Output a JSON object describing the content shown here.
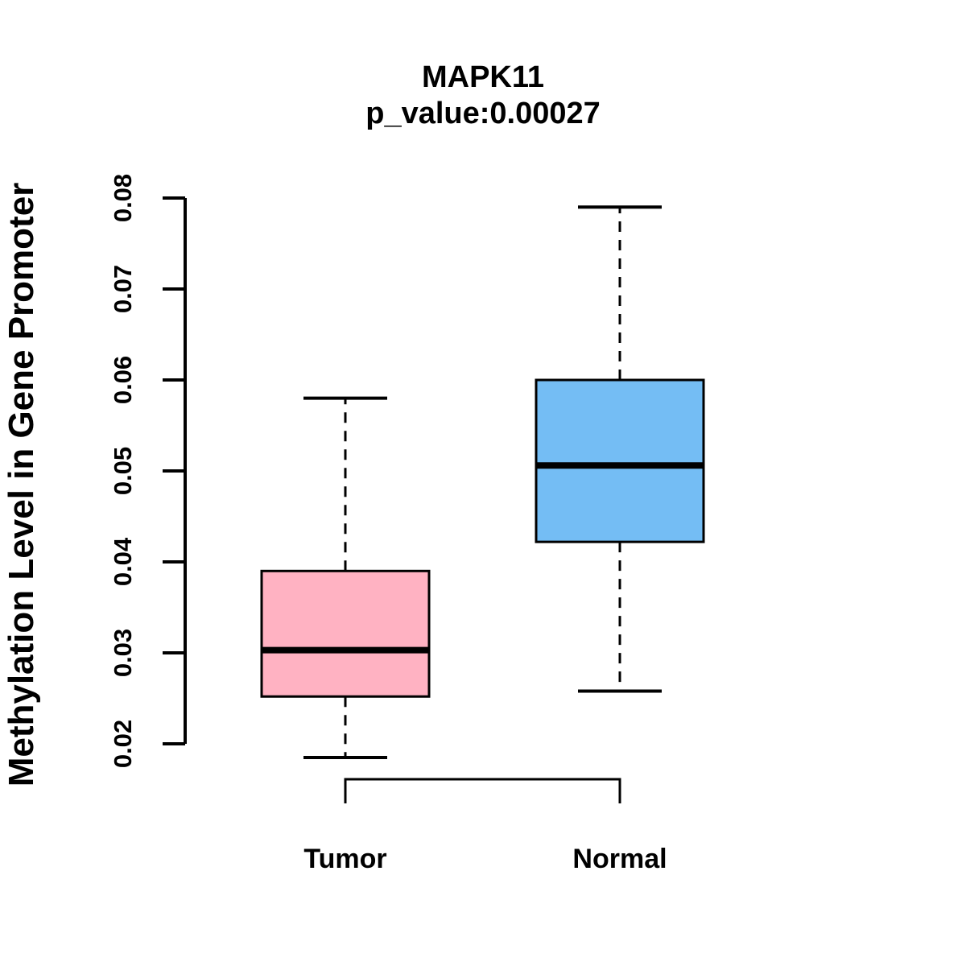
{
  "figure": {
    "background": "#FFFFFF",
    "line_color": "#000000"
  },
  "chart_data": {
    "type": "boxplot",
    "title": "MAPK11",
    "subtitle": "p_value:0.00027",
    "ylabel": "Methylation Level in Gene Promoter",
    "xlabel": "",
    "ylim": [
      0.02,
      0.08
    ],
    "ytick_values": [
      0.02,
      0.03,
      0.04,
      0.05,
      0.06,
      0.07,
      0.08
    ],
    "ytick_labels": [
      "0.02",
      "0.03",
      "0.04",
      "0.05",
      "0.06",
      "0.07",
      "0.08"
    ],
    "categories": [
      "Tumor",
      "Normal"
    ],
    "grid": false,
    "legend": "none",
    "series": [
      {
        "name": "Tumor",
        "color": "#FFB2C2",
        "lower_whisker": 0.0185,
        "q1": 0.0252,
        "median": 0.0303,
        "q3": 0.039,
        "upper_whisker": 0.058,
        "outliers": []
      },
      {
        "name": "Normal",
        "color": "#74BDF4",
        "lower_whisker": 0.0258,
        "q1": 0.0422,
        "median": 0.0506,
        "q3": 0.06,
        "upper_whisker": 0.079,
        "outliers": []
      }
    ]
  }
}
